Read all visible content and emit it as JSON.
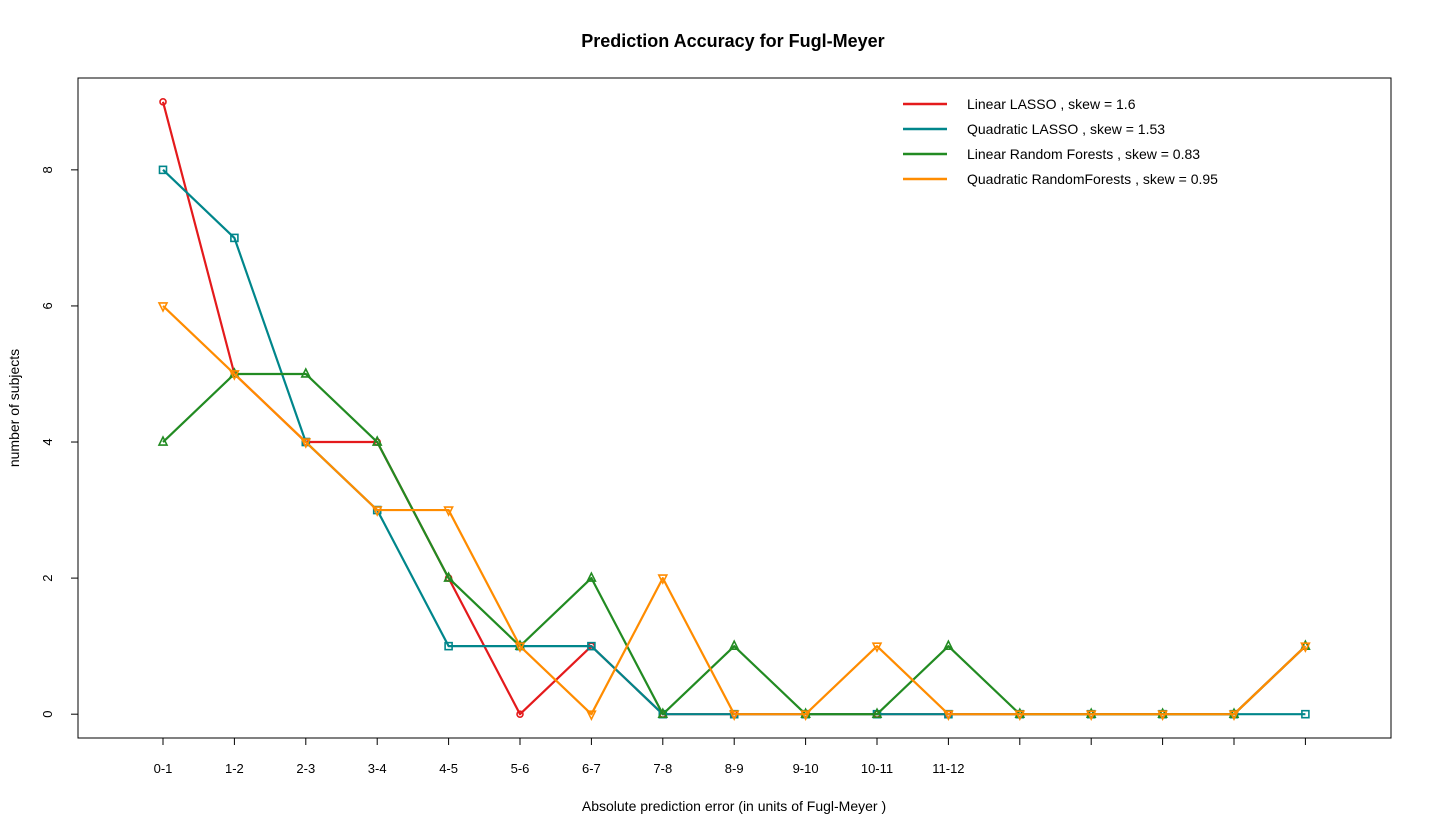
{
  "chart_data": {
    "type": "line",
    "title": "Prediction Accuracy for Fugl-Meyer",
    "xlabel": "Absolute prediction error (in units of Fugl-Meyer )",
    "ylabel": "number of subjects",
    "categories": [
      "0-1",
      "1-2",
      "2-3",
      "3-4",
      "4-5",
      "5-6",
      "6-7",
      "7-8",
      "8-9",
      "9-10",
      "10-11",
      "11-12",
      "",
      "",
      "",
      "",
      ""
    ],
    "y_ticks": [
      "0",
      "2",
      "4",
      "6",
      "8"
    ],
    "ylim": [
      -0.35,
      9.35
    ],
    "legend_position": "top-right",
    "series": [
      {
        "name": "Linear LASSO , skew =  1.6",
        "color": "#e41a1c",
        "marker": "circle",
        "values": [
          9,
          5,
          4,
          4,
          2,
          0,
          1,
          0,
          0,
          0,
          0,
          0,
          0,
          0,
          0,
          0,
          1
        ]
      },
      {
        "name": "Quadratic LASSO , skew =  1.53",
        "color": "#00868b",
        "marker": "square",
        "values": [
          8,
          7,
          4,
          3,
          1,
          1,
          1,
          0,
          0,
          0,
          0,
          0,
          0,
          0,
          0,
          0,
          0
        ]
      },
      {
        "name": "Linear Random Forests , skew =  0.83",
        "color": "#228b22",
        "marker": "triangle-up",
        "values": [
          4,
          5,
          5,
          4,
          2,
          1,
          2,
          0,
          1,
          0,
          0,
          1,
          0,
          0,
          0,
          0,
          1
        ]
      },
      {
        "name": "Quadratic RandomForests , skew =  0.95",
        "color": "#ff8c00",
        "marker": "triangle-down",
        "values": [
          6,
          5,
          4,
          3,
          3,
          1,
          0,
          2,
          0,
          0,
          1,
          0,
          0,
          0,
          0,
          0,
          1
        ]
      }
    ]
  }
}
